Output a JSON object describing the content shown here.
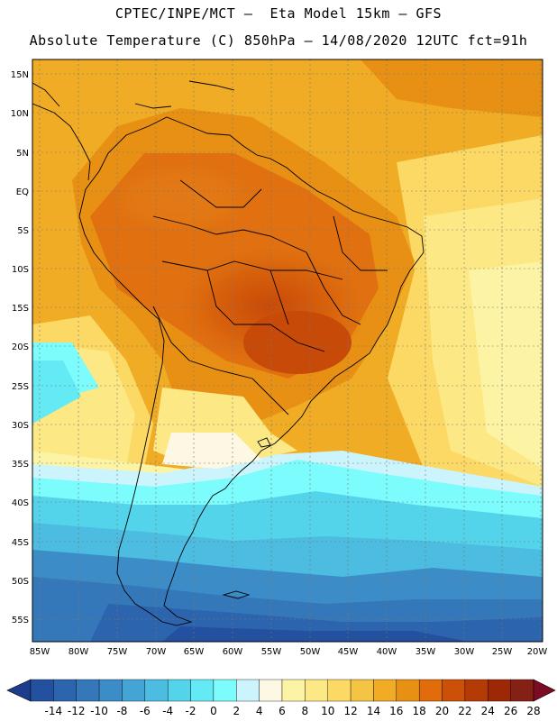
{
  "header": {
    "title_line1": "CPTEC/INPE/MCT –  Eta Model 15km – GFS",
    "title_line2": "Absolute Temperature (C) 850hPa – 14/08/2020 12UTC fct=91h"
  },
  "map": {
    "lat_labels": [
      "15N",
      "10N",
      "5N",
      "EQ",
      "5S",
      "10S",
      "15S",
      "20S",
      "25S",
      "30S",
      "35S",
      "40S",
      "45S",
      "50S",
      "55S"
    ],
    "lon_labels": [
      "85W",
      "80W",
      "75W",
      "70W",
      "65W",
      "60W",
      "55W",
      "50W",
      "45W",
      "40W",
      "35W",
      "30W",
      "25W",
      "20W"
    ]
  },
  "colorbar": {
    "labels": [
      "-14",
      "-12",
      "-10",
      "-8",
      "-6",
      "-4",
      "-2",
      "0",
      "2",
      "4",
      "6",
      "8",
      "10",
      "12",
      "14",
      "16",
      "18",
      "20",
      "22",
      "24",
      "26",
      "28"
    ],
    "colors": [
      "#1e3c8c",
      "#2450a0",
      "#2c64ae",
      "#3478ba",
      "#3c8cc8",
      "#44a4d4",
      "#4cbce0",
      "#54d4ea",
      "#64eaf4",
      "#7cfcfc",
      "#ccf4fc",
      "#fcf8e4",
      "#fcf4a4",
      "#fce884",
      "#fcd864",
      "#f4c444",
      "#f0ac24",
      "#e89014",
      "#e06c0c",
      "#cc5008",
      "#b43c04",
      "#9c2808",
      "#842014",
      "#7c0c24"
    ]
  }
}
